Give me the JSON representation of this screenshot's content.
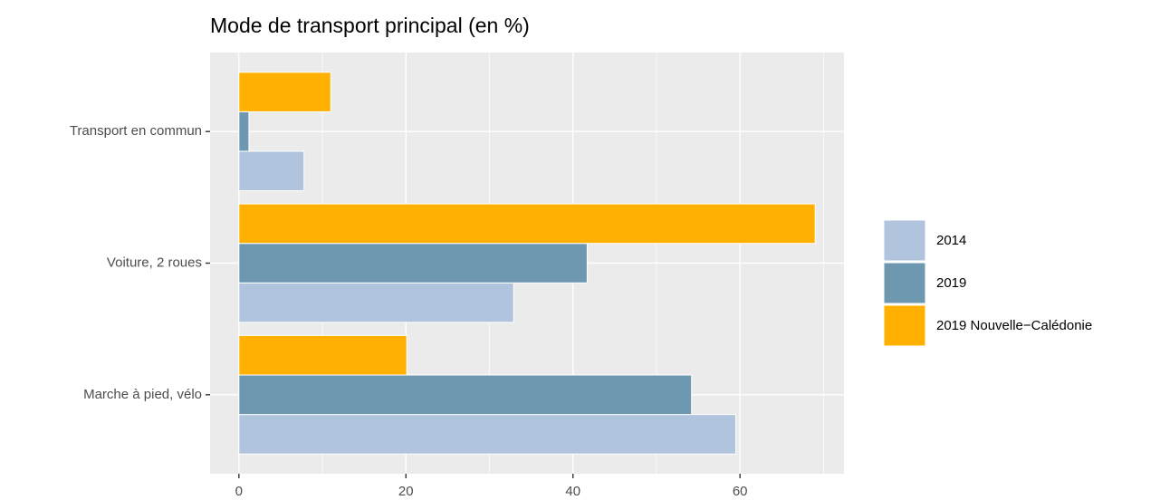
{
  "chart_data": {
    "type": "bar",
    "orientation": "horizontal",
    "title": "Mode de transport principal (en %)",
    "categories": [
      "Marche à pied, vélo",
      "Voiture, 2 roues",
      "Transport en commun"
    ],
    "series": [
      {
        "name": "2014",
        "color": "#b0c4de",
        "values": [
          59.5,
          32.9,
          7.8
        ]
      },
      {
        "name": "2019",
        "color": "#6e98b0",
        "values": [
          54.2,
          41.7,
          1.2
        ]
      },
      {
        "name": "2019 Nouvelle−Calédonie",
        "color": "#ffb000",
        "values": [
          20.1,
          69.0,
          11.0
        ]
      }
    ],
    "xlim": [
      -3.45,
      72.45
    ],
    "xticks": [
      0,
      20,
      40,
      60
    ],
    "minor_xticks": [
      10,
      30,
      50,
      70
    ],
    "grid": true,
    "legend": "right"
  }
}
